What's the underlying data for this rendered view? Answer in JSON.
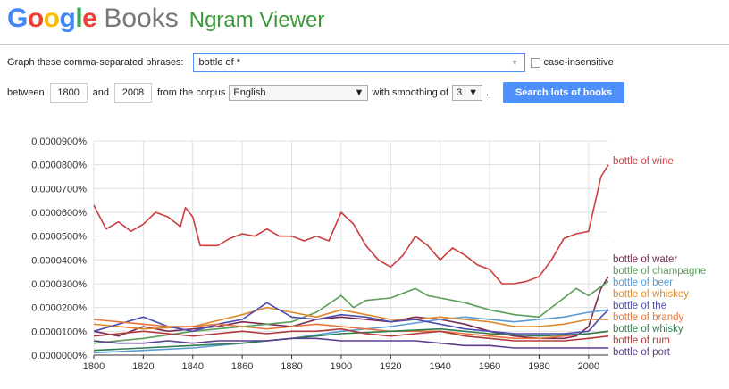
{
  "header": {
    "logo_letters": [
      "G",
      "o",
      "o",
      "g",
      "l",
      "e"
    ],
    "logo_colors": [
      "#4285f4",
      "#ea4335",
      "#fbbc05",
      "#4285f4",
      "#34a853",
      "#ea4335"
    ],
    "books": "Books",
    "ngram": "Ngram Viewer"
  },
  "query": {
    "phrases_label": "Graph these comma-separated phrases:",
    "phrases_value": "bottle of *",
    "case_insensitive_label": "case-insensitive",
    "between_label": "between",
    "start_year": "1800",
    "and_label": "and",
    "end_year": "2008",
    "corpus_label": "from the corpus",
    "corpus_value": "English",
    "smoothing_label": "with smoothing of",
    "smoothing_value": "3",
    "period": ".",
    "search_button": "Search lots of books"
  },
  "chart_data": {
    "type": "line",
    "y_tick_labels": [
      "0.0000000%",
      "0.0000100%",
      "0.0000200%",
      "0.0000300%",
      "0.0000400%",
      "0.0000500%",
      "0.0000600%",
      "0.0000700%",
      "0.0000800%",
      "0.0000900%"
    ],
    "y_ticks": [
      0,
      1,
      2,
      3,
      4,
      5,
      6,
      7,
      8,
      9
    ],
    "x_ticks": [
      1800,
      1820,
      1840,
      1860,
      1880,
      1900,
      1920,
      1940,
      1960,
      1980,
      2000
    ],
    "xlim": [
      1800,
      2008
    ],
    "ylim": [
      0,
      9
    ],
    "y_unit_note": "values in units of 0.0000100%",
    "grid": true,
    "legend": "right end labels",
    "series": [
      {
        "name": "bottle of wine",
        "color": "#cc3e3e",
        "x": [
          1800,
          1805,
          1810,
          1815,
          1820,
          1825,
          1830,
          1835,
          1837,
          1840,
          1843,
          1850,
          1855,
          1860,
          1865,
          1870,
          1875,
          1880,
          1885,
          1890,
          1895,
          1900,
          1905,
          1910,
          1915,
          1920,
          1925,
          1930,
          1935,
          1940,
          1945,
          1950,
          1955,
          1960,
          1965,
          1970,
          1975,
          1980,
          1985,
          1990,
          1995,
          2000,
          2005,
          2008
        ],
        "y": [
          6.3,
          5.3,
          5.6,
          5.2,
          5.5,
          6.0,
          5.8,
          5.4,
          6.2,
          5.8,
          4.6,
          4.6,
          4.9,
          5.1,
          5.0,
          5.3,
          5.0,
          5.0,
          4.8,
          5.0,
          4.8,
          6.0,
          5.5,
          4.6,
          4.0,
          3.7,
          4.2,
          5.0,
          4.6,
          4.0,
          4.5,
          4.2,
          3.8,
          3.6,
          3.0,
          3.0,
          3.1,
          3.3,
          4.0,
          4.9,
          5.1,
          5.2,
          7.5,
          8.0
        ]
      },
      {
        "name": "bottle of water",
        "color": "#7a2a55",
        "x": [
          1800,
          1810,
          1820,
          1830,
          1840,
          1850,
          1860,
          1870,
          1880,
          1890,
          1900,
          1910,
          1920,
          1930,
          1940,
          1950,
          1960,
          1970,
          1980,
          1990,
          1995,
          2000,
          2005,
          2008
        ],
        "y": [
          1.0,
          0.8,
          1.2,
          1.0,
          1.1,
          1.2,
          1.4,
          1.3,
          1.2,
          1.5,
          1.6,
          1.5,
          1.4,
          1.6,
          1.5,
          1.3,
          1.0,
          0.8,
          0.7,
          0.7,
          0.8,
          1.2,
          2.8,
          3.3
        ]
      },
      {
        "name": "bottle of champagne",
        "color": "#5a9e5a",
        "x": [
          1800,
          1820,
          1840,
          1860,
          1880,
          1890,
          1900,
          1905,
          1910,
          1920,
          1930,
          1935,
          1940,
          1950,
          1960,
          1970,
          1980,
          1990,
          1995,
          2000,
          2008
        ],
        "y": [
          0.5,
          0.7,
          1.0,
          1.2,
          1.4,
          1.8,
          2.5,
          2.0,
          2.3,
          2.4,
          2.8,
          2.5,
          2.4,
          2.2,
          1.9,
          1.7,
          1.6,
          2.4,
          2.8,
          2.5,
          3.1
        ]
      },
      {
        "name": "bottle of beer",
        "color": "#5b9bd5",
        "x": [
          1800,
          1820,
          1840,
          1860,
          1880,
          1900,
          1920,
          1940,
          1950,
          1960,
          1970,
          1980,
          1990,
          2000,
          2008
        ],
        "y": [
          0.1,
          0.2,
          0.3,
          0.5,
          0.7,
          1.0,
          1.2,
          1.5,
          1.6,
          1.5,
          1.4,
          1.5,
          1.6,
          1.8,
          1.9
        ]
      },
      {
        "name": "bottle of whiskey",
        "color": "#e0892a",
        "x": [
          1800,
          1820,
          1840,
          1860,
          1870,
          1880,
          1890,
          1900,
          1910,
          1920,
          1930,
          1940,
          1950,
          1960,
          1970,
          1980,
          1990,
          2000,
          2008
        ],
        "y": [
          1.3,
          1.1,
          1.2,
          1.7,
          2.0,
          1.8,
          1.6,
          1.9,
          1.7,
          1.5,
          1.5,
          1.6,
          1.5,
          1.4,
          1.2,
          1.2,
          1.3,
          1.5,
          1.5
        ]
      },
      {
        "name": "bottle of the",
        "color": "#4b4bb0",
        "x": [
          1800,
          1810,
          1820,
          1830,
          1840,
          1850,
          1860,
          1870,
          1880,
          1890,
          1900,
          1910,
          1920,
          1930,
          1940,
          1950,
          1960,
          1970,
          1980,
          1990,
          2000,
          2005,
          2008
        ],
        "y": [
          1.0,
          1.3,
          1.6,
          1.2,
          1.0,
          1.3,
          1.5,
          2.2,
          1.6,
          1.5,
          1.7,
          1.6,
          1.4,
          1.5,
          1.3,
          1.1,
          1.0,
          0.9,
          0.9,
          0.9,
          1.0,
          1.6,
          1.9
        ]
      },
      {
        "name": "bottle of brandy",
        "color": "#e8743b",
        "x": [
          1800,
          1810,
          1820,
          1830,
          1840,
          1850,
          1860,
          1870,
          1880,
          1890,
          1900,
          1910,
          1920,
          1930,
          1940,
          1950,
          1960,
          1970,
          1980,
          1990,
          2000,
          2008
        ],
        "y": [
          1.5,
          1.4,
          1.3,
          1.2,
          1.2,
          1.3,
          1.2,
          1.1,
          1.2,
          1.3,
          1.2,
          1.1,
          1.0,
          1.0,
          1.0,
          0.9,
          0.8,
          0.7,
          0.7,
          0.8,
          0.9,
          1.0
        ]
      },
      {
        "name": "bottle of whisky",
        "color": "#2e7d4f",
        "x": [
          1800,
          1820,
          1840,
          1860,
          1880,
          1900,
          1920,
          1940,
          1960,
          1980,
          2000,
          2008
        ],
        "y": [
          0.2,
          0.3,
          0.4,
          0.5,
          0.7,
          0.9,
          1.0,
          1.1,
          0.9,
          0.8,
          0.9,
          1.0
        ]
      },
      {
        "name": "bottle of rum",
        "color": "#b03a3a",
        "x": [
          1800,
          1810,
          1820,
          1830,
          1840,
          1850,
          1860,
          1870,
          1880,
          1890,
          1900,
          1910,
          1920,
          1930,
          1940,
          1950,
          1960,
          1970,
          1980,
          1990,
          2000,
          2008
        ],
        "y": [
          0.8,
          0.9,
          1.0,
          0.9,
          0.8,
          0.9,
          1.0,
          0.9,
          1.0,
          1.0,
          1.1,
          0.9,
          0.8,
          0.9,
          1.0,
          0.8,
          0.7,
          0.6,
          0.6,
          0.6,
          0.7,
          0.8
        ]
      },
      {
        "name": "bottle of port",
        "color": "#5c3d8f",
        "x": [
          1800,
          1810,
          1820,
          1830,
          1840,
          1850,
          1860,
          1870,
          1880,
          1890,
          1900,
          1910,
          1920,
          1930,
          1940,
          1950,
          1960,
          1970,
          1980,
          1990,
          2000,
          2008
        ],
        "y": [
          0.6,
          0.5,
          0.5,
          0.6,
          0.5,
          0.6,
          0.6,
          0.6,
          0.7,
          0.7,
          0.6,
          0.6,
          0.6,
          0.6,
          0.5,
          0.4,
          0.4,
          0.3,
          0.3,
          0.3,
          0.3,
          0.3
        ]
      }
    ]
  }
}
